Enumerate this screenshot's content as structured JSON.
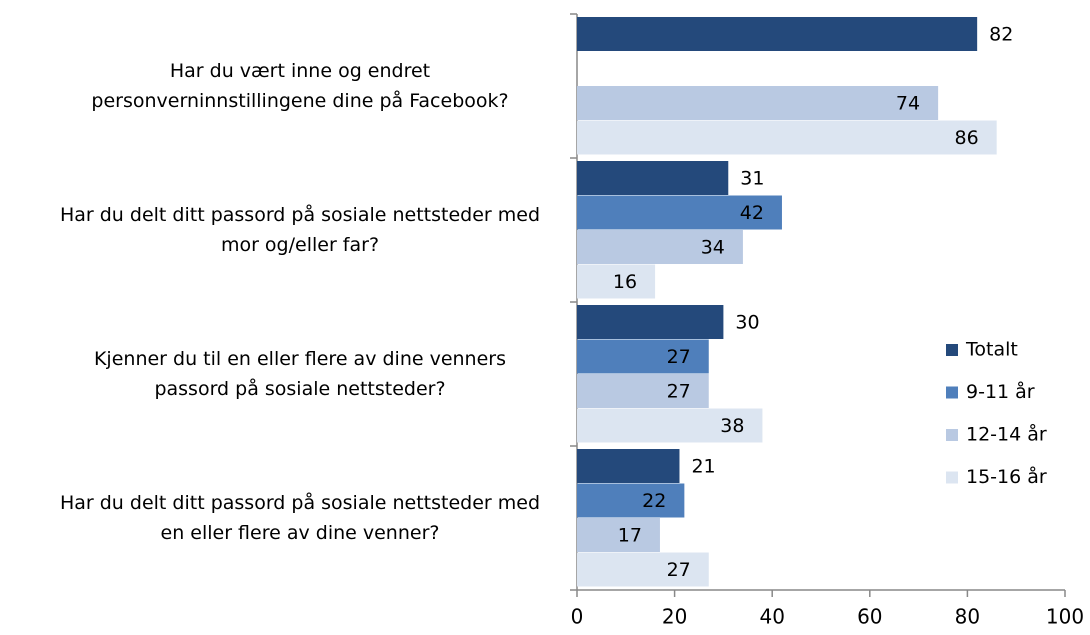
{
  "chart_data": {
    "type": "hbar",
    "categories": [
      "Har du vært inne og endret\npersonverninnstillingene dine på Facebook?",
      "Har du delt ditt passord på sosiale nettsteder med\nmor og/eller far?",
      "Kjenner du til en eller flere av dine venners\npassord på sosiale nettsteder?",
      "Har du delt ditt passord på sosiale nettsteder med\nen eller flere av dine venner?"
    ],
    "series": [
      {
        "name": "Totalt",
        "color": "#24497b",
        "values": [
          82,
          31,
          30,
          21
        ]
      },
      {
        "name": "9-11 år",
        "color": "#4f7fbb",
        "values": [
          null,
          42,
          27,
          22
        ]
      },
      {
        "name": "12-14 år",
        "color": "#b9c9e2",
        "values": [
          74,
          34,
          27,
          17
        ]
      },
      {
        "name": "15-16 år",
        "color": "#dce5f1",
        "values": [
          86,
          16,
          38,
          27
        ]
      }
    ],
    "xlim": [
      0,
      100
    ],
    "xticks": [
      0,
      20,
      40,
      60,
      80,
      100
    ],
    "legend": "right"
  }
}
